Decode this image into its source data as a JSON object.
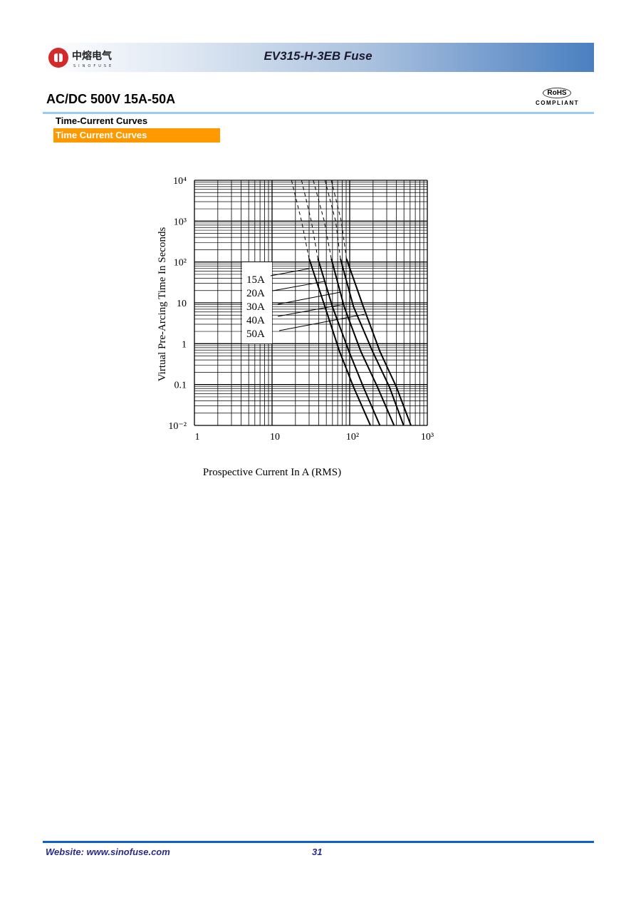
{
  "header": {
    "brand_logo_text": "中熔电气 SINOFUSE",
    "title": "EV315-H-3EB  Fuse"
  },
  "heading": "AC/DC 500V 15A-50A",
  "rohs": {
    "label": "RoHS",
    "sub": "COMPLIANT"
  },
  "section_title": "Time-Current Curves",
  "section_bar": "Time Current Curves",
  "chart_data": {
    "type": "line",
    "xlabel": "Prospective Current In A (RMS)",
    "ylabel": "Virtual Pre-Arcing Time In Seconds",
    "xscale": "log",
    "yscale": "log",
    "xlim": [
      1,
      1000
    ],
    "ylim": [
      0.01,
      10000
    ],
    "x_tick_labels": [
      "1",
      "10",
      "10²",
      "10³"
    ],
    "y_tick_labels": [
      "10⁴",
      "10³",
      "10²",
      "10",
      "1",
      "0.1",
      "10⁻²"
    ],
    "grid": true,
    "legend_placement": "center-left, labels with leader lines",
    "note": "dashed above ~100 s",
    "series": [
      {
        "name": "15A",
        "points": [
          [
            17.8,
            10000
          ],
          [
            24,
            1000
          ],
          [
            30,
            120
          ],
          [
            48,
            8
          ],
          [
            74,
            0.65
          ],
          [
            112,
            0.087
          ],
          [
            185,
            0.01
          ]
        ]
      },
      {
        "name": "20A",
        "points": [
          [
            24,
            10000
          ],
          [
            32,
            1000
          ],
          [
            39,
            120
          ],
          [
            60,
            8
          ],
          [
            98,
            0.65
          ],
          [
            150,
            0.087
          ],
          [
            245,
            0.01
          ]
        ]
      },
      {
        "name": "30A",
        "points": [
          [
            34,
            10000
          ],
          [
            47,
            1000
          ],
          [
            58,
            120
          ],
          [
            85,
            8
          ],
          [
            139,
            0.65
          ],
          [
            228,
            0.087
          ],
          [
            373,
            0.01
          ]
        ]
      },
      {
        "name": "40A",
        "points": [
          [
            48,
            10000
          ],
          [
            66,
            1000
          ],
          [
            76,
            120
          ],
          [
            112,
            8
          ],
          [
            197,
            0.65
          ],
          [
            325,
            0.087
          ],
          [
            495,
            0.01
          ]
        ]
      },
      {
        "name": "50A",
        "points": [
          [
            58,
            10000
          ],
          [
            78,
            1000
          ],
          [
            91,
            120
          ],
          [
            150,
            8
          ],
          [
            245,
            0.65
          ],
          [
            400,
            0.087
          ],
          [
            615,
            0.01
          ]
        ]
      }
    ]
  },
  "footer": {
    "website": "Website: www.sinofuse.com",
    "page": "31"
  },
  "colors": {
    "banner_end": "#4a7fc0",
    "orange_bar": "#ff9900",
    "rule": "#99ccf5",
    "footer_rule": "#0a63c9",
    "footer_text": "#2a2a8c"
  }
}
